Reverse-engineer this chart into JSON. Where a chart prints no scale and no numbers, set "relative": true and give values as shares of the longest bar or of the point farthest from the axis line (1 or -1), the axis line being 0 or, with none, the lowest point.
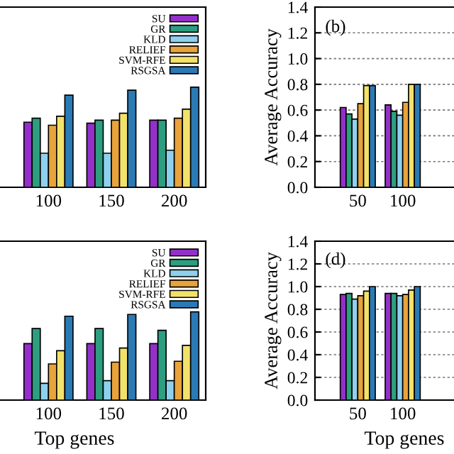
{
  "chart_data": [
    {
      "type": "bar",
      "relative": true,
      "categories": [
        "100",
        "150",
        "200"
      ],
      "legend": "top right",
      "tick_labels": "x",
      "series": [
        {
          "name": "SU",
          "color": "#9430c8",
          "values": [
            0.65,
            0.64,
            0.67
          ]
        },
        {
          "name": "GR",
          "color": "#2e9e80",
          "values": [
            0.69,
            0.67,
            0.67
          ]
        },
        {
          "name": "KLD",
          "color": "#8fd0ee",
          "values": [
            0.34,
            0.34,
            0.37
          ]
        },
        {
          "name": "RELIEF",
          "color": "#e8a33a",
          "values": [
            0.62,
            0.67,
            0.69
          ]
        },
        {
          "name": "SVM-RFE",
          "color": "#f3e26a",
          "values": [
            0.71,
            0.74,
            0.78
          ]
        },
        {
          "name": "RSGSA",
          "color": "#2a7ab5",
          "values": [
            0.92,
            0.97,
            1.0
          ]
        }
      ]
    },
    {
      "type": "bar",
      "categories": [
        "50",
        "100"
      ],
      "ylabel": "Average Accuracy",
      "annotations": [
        "(b)"
      ],
      "grid": "y",
      "ylim": [
        0,
        1.4
      ],
      "yticks": [
        {
          "value": 0,
          "label": "0.0"
        },
        {
          "value": 0.2,
          "label": "0.2"
        },
        {
          "value": 0.4,
          "label": "0.4"
        },
        {
          "value": 0.6,
          "label": "0.6"
        },
        {
          "value": 0.8,
          "label": "0.8"
        },
        {
          "value": 1.0,
          "label": "1.0"
        },
        {
          "value": 1.2,
          "label": "1.2"
        },
        {
          "value": 1.4,
          "label": "1.4"
        }
      ],
      "series": [
        {
          "color": "#9430c8",
          "values": [
            0.62,
            0.64
          ]
        },
        {
          "color": "#2e9e80",
          "values": [
            0.57,
            0.59
          ]
        },
        {
          "color": "#8fd0ee",
          "values": [
            0.53,
            0.56
          ]
        },
        {
          "color": "#e8a33a",
          "values": [
            0.65,
            0.66
          ]
        },
        {
          "color": "#f3e26a",
          "values": [
            0.79,
            0.8
          ]
        },
        {
          "color": "#2a7ab5",
          "values": [
            0.79,
            0.8
          ]
        }
      ]
    },
    {
      "type": "bar",
      "relative": true,
      "categories": [
        "100",
        "150",
        "200"
      ],
      "xlabel": "Top genes",
      "legend": "top right",
      "tick_labels": "x",
      "series": [
        {
          "name": "SU",
          "color": "#9430c8",
          "values": [
            0.64,
            0.64,
            0.64
          ]
        },
        {
          "name": "GR",
          "color": "#2e9e80",
          "values": [
            0.81,
            0.81,
            0.79
          ]
        },
        {
          "name": "KLD",
          "color": "#8fd0ee",
          "values": [
            0.19,
            0.22,
            0.22
          ]
        },
        {
          "name": "RELIEF",
          "color": "#e8a33a",
          "values": [
            0.41,
            0.43,
            0.44
          ]
        },
        {
          "name": "SVM-RFE",
          "color": "#f3e26a",
          "values": [
            0.56,
            0.59,
            0.62
          ]
        },
        {
          "name": "RSGSA",
          "color": "#2a7ab5",
          "values": [
            0.95,
            0.97,
            1.0
          ]
        }
      ]
    },
    {
      "type": "bar",
      "categories": [
        "50",
        "100"
      ],
      "xlabel": "Top genes",
      "ylabel": "Average Accuracy",
      "annotations": [
        "(d)"
      ],
      "grid": "y",
      "ylim": [
        0,
        1.4
      ],
      "yticks": [
        {
          "value": 0,
          "label": "0.0"
        },
        {
          "value": 0.2,
          "label": "0.2"
        },
        {
          "value": 0.4,
          "label": "0.4"
        },
        {
          "value": 0.6,
          "label": "0.6"
        },
        {
          "value": 0.8,
          "label": "0.8"
        },
        {
          "value": 1.0,
          "label": "1.0"
        },
        {
          "value": 1.2,
          "label": "1.2"
        },
        {
          "value": 1.4,
          "label": "1.4"
        }
      ],
      "series": [
        {
          "color": "#9430c8",
          "values": [
            0.93,
            0.94
          ]
        },
        {
          "color": "#2e9e80",
          "values": [
            0.94,
            0.94
          ]
        },
        {
          "color": "#8fd0ee",
          "values": [
            0.89,
            0.92
          ]
        },
        {
          "color": "#e8a33a",
          "values": [
            0.92,
            0.93
          ]
        },
        {
          "color": "#f3e26a",
          "values": [
            0.96,
            0.97
          ]
        },
        {
          "color": "#2a7ab5",
          "values": [
            1.0,
            1.0
          ]
        }
      ]
    }
  ]
}
